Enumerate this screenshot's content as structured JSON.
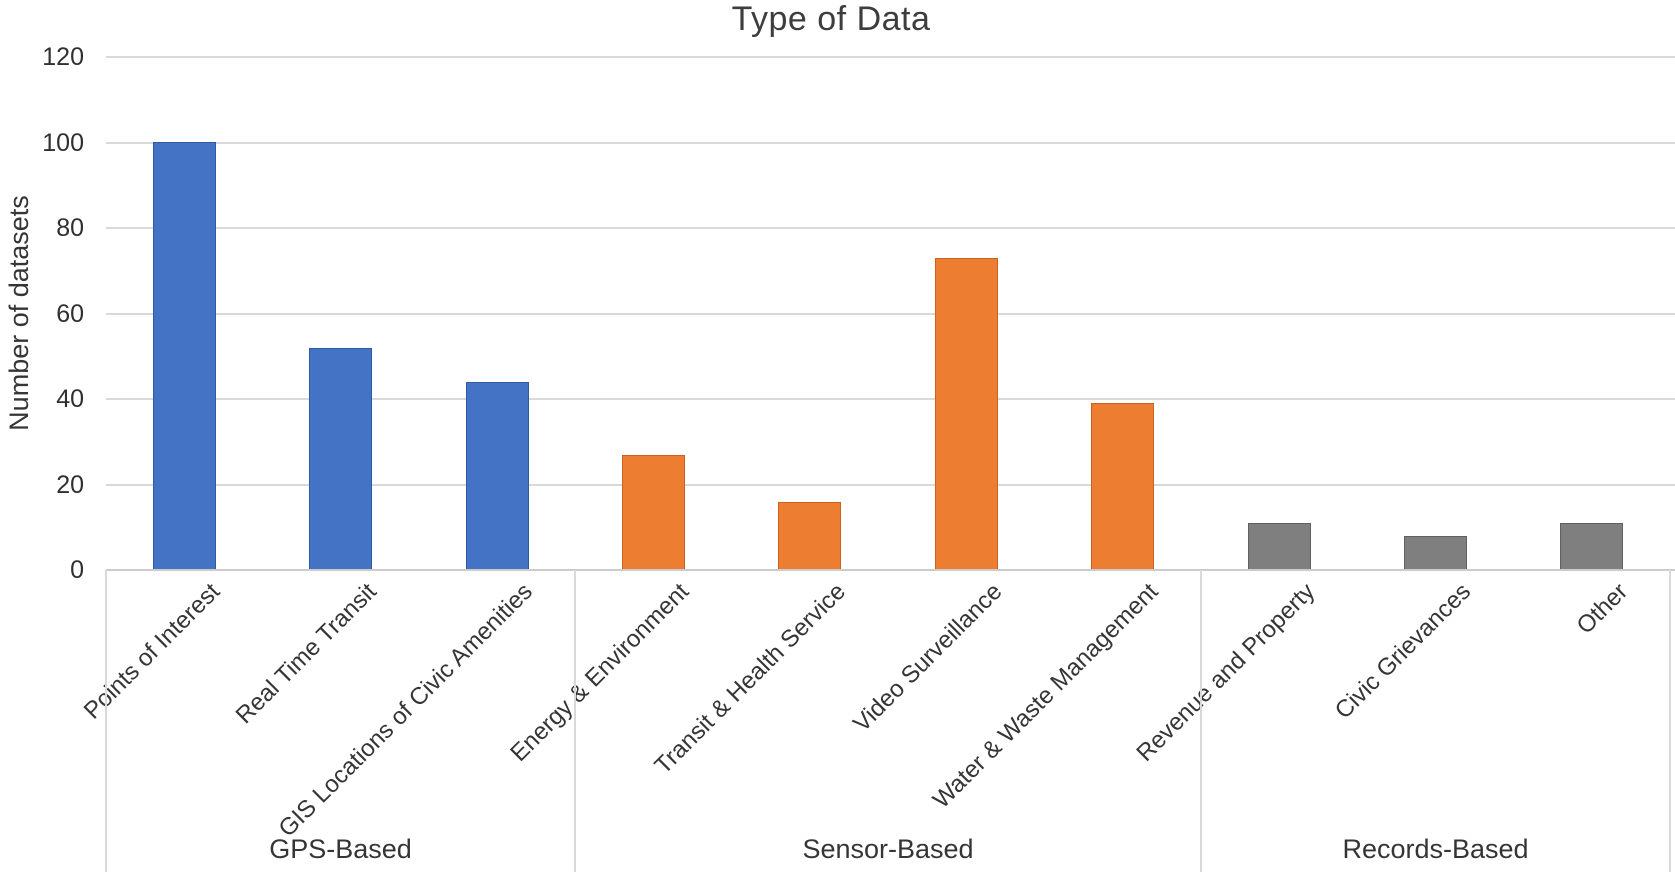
{
  "chart_data": {
    "type": "bar",
    "title": "Type of Data",
    "xlabel": "",
    "ylabel": "Number of datasets",
    "ylim": [
      0,
      120
    ],
    "yticks": [
      0,
      20,
      40,
      60,
      80,
      100,
      120
    ],
    "grid": true,
    "legend_position": "none",
    "groups": [
      {
        "label": "GPS-Based",
        "fill_color": "#4472C4",
        "border_color": "#2D5AA0",
        "categories": [
          "Points of Interest",
          "Real Time Transit",
          "GIS Locations of Civic Amenities"
        ],
        "values": [
          100,
          52,
          44
        ]
      },
      {
        "label": "Sensor-Based",
        "fill_color": "#ED7D31",
        "border_color": "#CD6120",
        "categories": [
          "Energy & Environment",
          "Transit & Health Service",
          "Video Surveillance",
          "Water & Waste Management"
        ],
        "values": [
          27,
          16,
          73,
          39
        ]
      },
      {
        "label": "Records-Based",
        "fill_color": "#7F7F7F",
        "border_color": "#606060",
        "categories": [
          "Revenue and Property",
          "Civic Grievances",
          "Other"
        ],
        "values": [
          11,
          8,
          11
        ]
      }
    ]
  },
  "colors": {
    "gridline": "#D9D9D9",
    "axis_line": "#CCCCCC",
    "text": "#353535"
  }
}
